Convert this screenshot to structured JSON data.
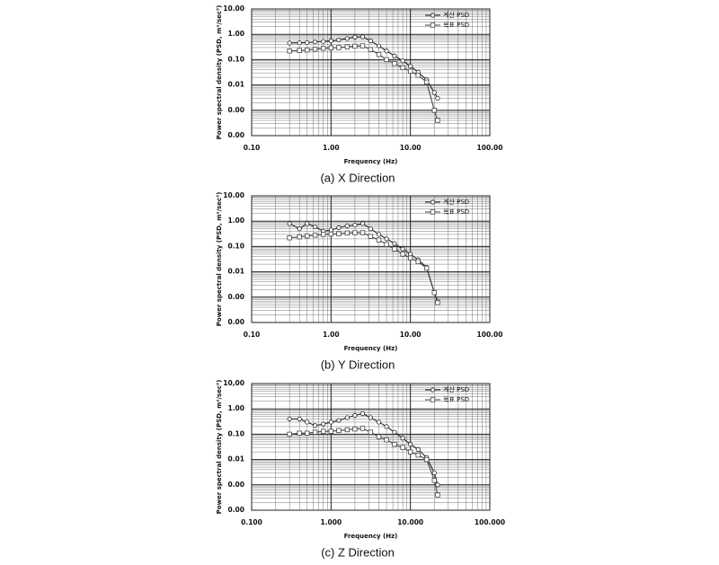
{
  "chart_data": [
    {
      "type": "line",
      "caption": "(a) X Direction",
      "xlabel": "Frequency (Hz)",
      "ylabel": "Power spectral density (PSD, m²/sec³)",
      "xlog": true,
      "ylog": true,
      "grid": true,
      "minor_grid": true,
      "legend": "upper right",
      "xlim": [
        0.1,
        100
      ],
      "ylim": [
        0.0001,
        10
      ],
      "xticks": [
        {
          "value": 0.1,
          "label": "0.10"
        },
        {
          "value": 1,
          "label": "1.00"
        },
        {
          "value": 10,
          "label": "10.00"
        },
        {
          "value": 100,
          "label": "100.00"
        }
      ],
      "yticks": [
        {
          "value": 0.0001,
          "label": "0.00"
        },
        {
          "value": 0.001,
          "label": "0.00"
        },
        {
          "value": 0.01,
          "label": "0.01"
        },
        {
          "value": 0.1,
          "label": "0.10"
        },
        {
          "value": 1,
          "label": "1.00"
        },
        {
          "value": 10,
          "label": "10.00"
        }
      ],
      "x": [
        0.3,
        0.4,
        0.5,
        0.63,
        0.8,
        1,
        1.25,
        1.6,
        2,
        2.5,
        3.15,
        4,
        5,
        6.3,
        8,
        10,
        12.5,
        16,
        20,
        22
      ],
      "series": [
        {
          "name": "계산 PSD",
          "color": "#222222",
          "marker": "circle",
          "values": [
            0.45,
            0.46,
            0.47,
            0.5,
            0.52,
            0.55,
            0.6,
            0.68,
            0.78,
            0.8,
            0.55,
            0.35,
            0.22,
            0.14,
            0.09,
            0.055,
            0.032,
            0.016,
            0.005,
            0.003
          ]
        },
        {
          "name": "목표 PSD",
          "color": "#444444",
          "marker": "square",
          "values": [
            0.22,
            0.23,
            0.24,
            0.26,
            0.28,
            0.29,
            0.3,
            0.32,
            0.34,
            0.35,
            0.25,
            0.16,
            0.1,
            0.07,
            0.048,
            0.035,
            0.024,
            0.013,
            0.001,
            0.0004
          ]
        }
      ]
    },
    {
      "type": "line",
      "caption": "(b) Y Direction",
      "xlabel": "Frequency (Hz)",
      "ylabel": "Power spectral density (PSD, m²/sec³)",
      "xlog": true,
      "ylog": true,
      "grid": true,
      "minor_grid": true,
      "legend": "upper right",
      "xlim": [
        0.1,
        100
      ],
      "ylim": [
        0.0001,
        10
      ],
      "xticks": [
        {
          "value": 0.1,
          "label": "0.10"
        },
        {
          "value": 1,
          "label": "1.00"
        },
        {
          "value": 10,
          "label": "10.00"
        },
        {
          "value": 100,
          "label": "100.00"
        }
      ],
      "yticks": [
        {
          "value": 0.0001,
          "label": "0.00"
        },
        {
          "value": 0.001,
          "label": "0.00"
        },
        {
          "value": 0.01,
          "label": "0.01"
        },
        {
          "value": 0.1,
          "label": "0.10"
        },
        {
          "value": 1,
          "label": "1.00"
        },
        {
          "value": 10,
          "label": "10.00"
        }
      ],
      "x": [
        0.3,
        0.4,
        0.5,
        0.63,
        0.8,
        1,
        1.25,
        1.6,
        2,
        2.5,
        3.15,
        4,
        5,
        6.3,
        8,
        10,
        12.5,
        16,
        20,
        22
      ],
      "series": [
        {
          "name": "계산 PSD",
          "color": "#222222",
          "marker": "circle",
          "values": [
            0.8,
            0.5,
            0.8,
            0.6,
            0.4,
            0.45,
            0.55,
            0.65,
            0.7,
            0.8,
            0.5,
            0.3,
            0.2,
            0.13,
            0.08,
            0.05,
            0.03,
            0.015,
            0.0015,
            0.0007
          ]
        },
        {
          "name": "목표 PSD",
          "color": "#444444",
          "marker": "square",
          "values": [
            0.22,
            0.24,
            0.26,
            0.28,
            0.3,
            0.31,
            0.32,
            0.34,
            0.35,
            0.35,
            0.25,
            0.18,
            0.12,
            0.08,
            0.05,
            0.035,
            0.025,
            0.014,
            0.0015,
            0.0006
          ]
        }
      ]
    },
    {
      "type": "line",
      "caption": "(c) Z Direction",
      "xlabel": "Frequency (Hz)",
      "ylabel": "Power spectral density (PSD, m²/sec³)",
      "xlog": true,
      "ylog": true,
      "grid": true,
      "minor_grid": true,
      "legend": "upper right",
      "xlim": [
        0.1,
        100
      ],
      "ylim": [
        0.0001,
        10
      ],
      "xticks": [
        {
          "value": 0.1,
          "label": "0.100"
        },
        {
          "value": 1,
          "label": "1.000"
        },
        {
          "value": 10,
          "label": "10.000"
        },
        {
          "value": 100,
          "label": "100.000"
        }
      ],
      "yticks": [
        {
          "value": 0.0001,
          "label": "0.00"
        },
        {
          "value": 0.001,
          "label": "0.00"
        },
        {
          "value": 0.01,
          "label": "0.01"
        },
        {
          "value": 0.1,
          "label": "0.10"
        },
        {
          "value": 1,
          "label": "1.00"
        },
        {
          "value": 10,
          "label": "10,00"
        }
      ],
      "x": [
        0.3,
        0.4,
        0.5,
        0.63,
        0.8,
        1,
        1.25,
        1.6,
        2,
        2.5,
        3.15,
        4,
        5,
        6.3,
        8,
        10,
        12.5,
        16,
        20,
        22
      ],
      "series": [
        {
          "name": "계산 PSD",
          "color": "#222222",
          "marker": "circle",
          "values": [
            0.4,
            0.4,
            0.3,
            0.22,
            0.25,
            0.3,
            0.35,
            0.45,
            0.55,
            0.65,
            0.45,
            0.3,
            0.2,
            0.12,
            0.07,
            0.04,
            0.025,
            0.012,
            0.003,
            0.001
          ]
        },
        {
          "name": "목표 PSD",
          "color": "#444444",
          "marker": "square",
          "values": [
            0.1,
            0.11,
            0.11,
            0.12,
            0.13,
            0.13,
            0.14,
            0.15,
            0.16,
            0.17,
            0.12,
            0.08,
            0.06,
            0.04,
            0.03,
            0.02,
            0.015,
            0.01,
            0.0015,
            0.0004
          ]
        }
      ]
    }
  ]
}
